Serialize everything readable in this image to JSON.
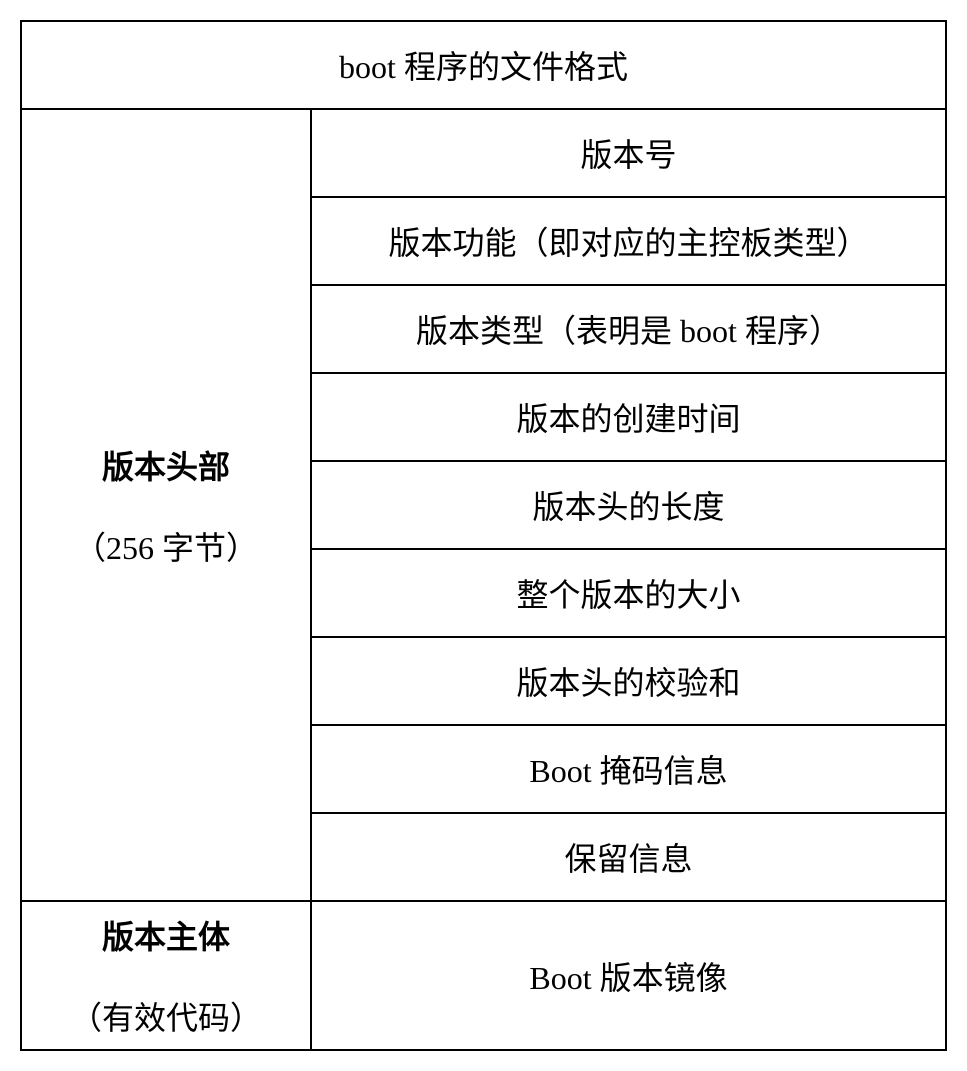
{
  "table": {
    "title": "boot 程序的文件格式",
    "border_color": "#000000",
    "background_color": "#ffffff",
    "text_color": "#000000",
    "title_fontsize": 32,
    "cell_fontsize": 32,
    "header_fontweight": "bold",
    "sections": [
      {
        "header_title": "版本头部",
        "header_subtitle": "（256 字节）",
        "rows": [
          "版本号",
          "版本功能（即对应的主控板类型）",
          "版本类型（表明是 boot 程序）",
          "版本的创建时间",
          "版本头的长度",
          "整个版本的大小",
          "版本头的校验和",
          "Boot 掩码信息",
          "保留信息"
        ]
      },
      {
        "header_title": "版本主体",
        "header_subtitle": "（有效代码）",
        "rows": [
          "Boot 版本镜像"
        ]
      }
    ]
  }
}
